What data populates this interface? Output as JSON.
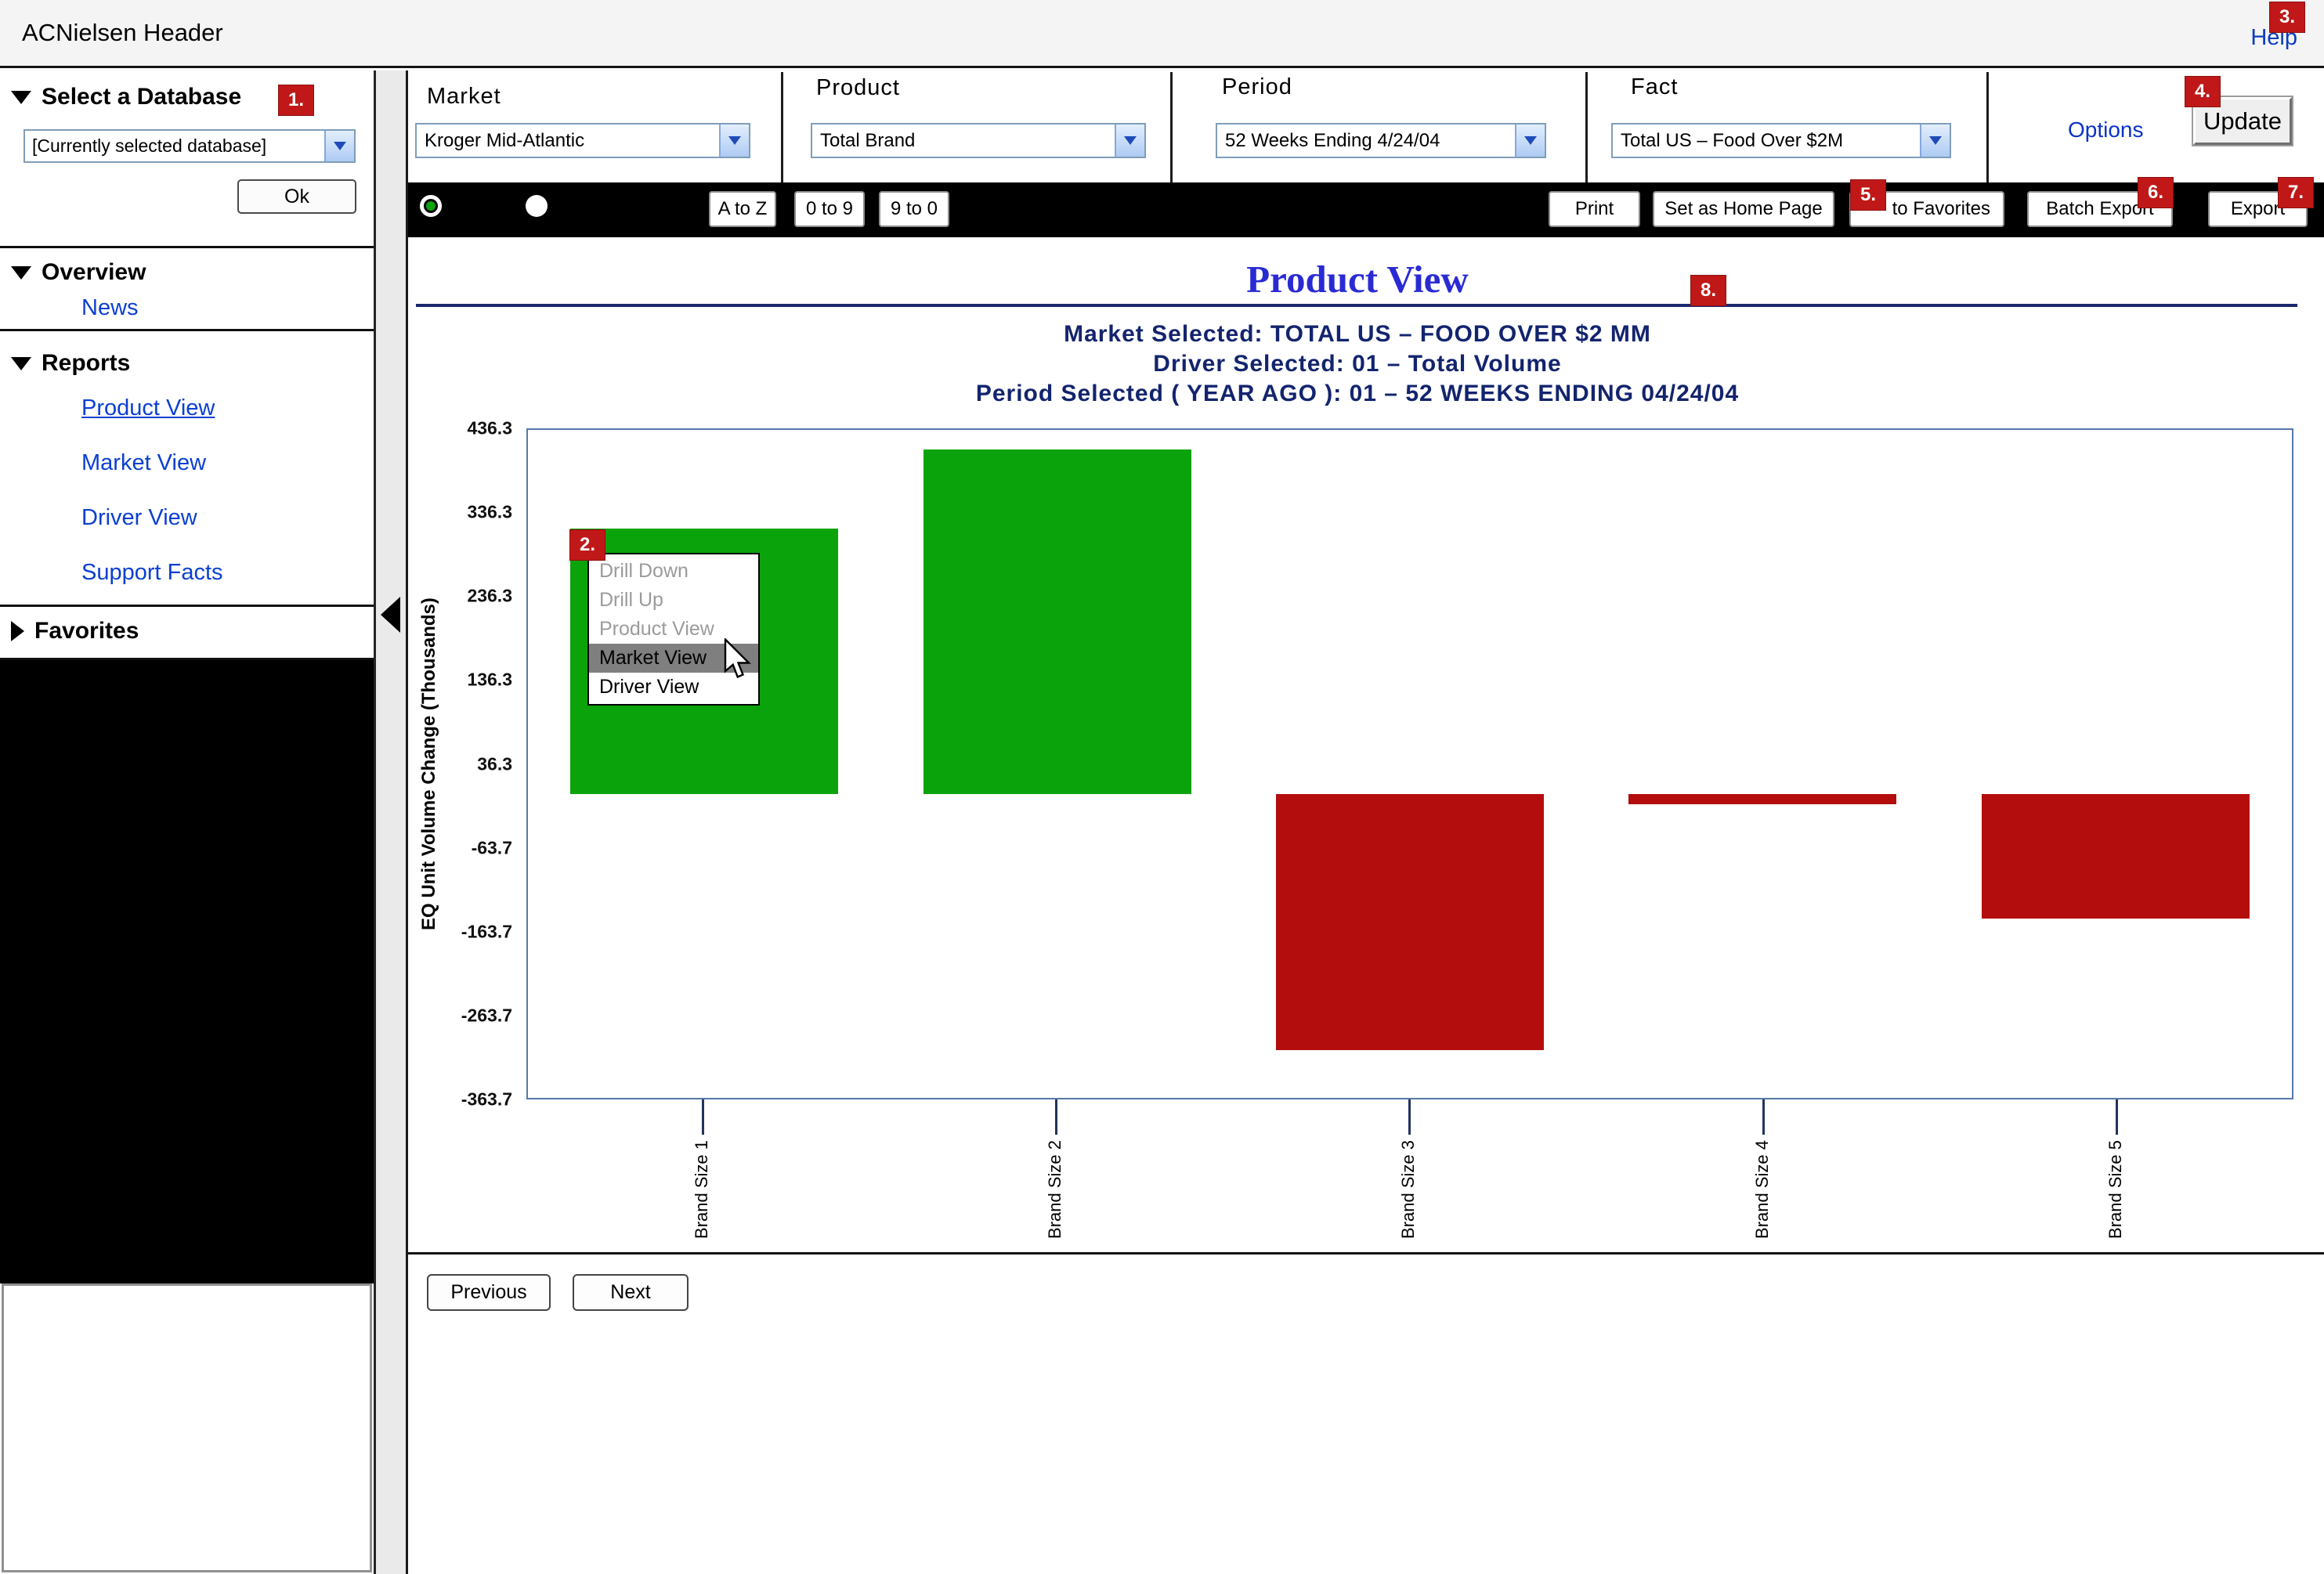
{
  "header": {
    "app_title": "ACNielsen Header",
    "help_label": "Help"
  },
  "badges": {
    "b1": "1.",
    "b2": "2.",
    "b3": "3.",
    "b4": "4.",
    "b5": "5.",
    "b6": "6.",
    "b7": "7.",
    "b8": "8."
  },
  "sidebar": {
    "select_database": {
      "label": "Select a Database",
      "value": "[Currently selected database]",
      "ok_label": "Ok"
    },
    "overview": {
      "label": "Overview",
      "news_label": "News"
    },
    "reports": {
      "label": "Reports",
      "items": [
        {
          "label": "Product View",
          "active": true
        },
        {
          "label": "Market View",
          "active": false
        },
        {
          "label": "Driver View",
          "active": false
        },
        {
          "label": "Support Facts",
          "active": false
        }
      ]
    },
    "favorites_label": "Favorites"
  },
  "filters": {
    "market": {
      "label": "Market",
      "value": "Kroger Mid-Atlantic"
    },
    "product": {
      "label": "Product",
      "value": "Total Brand"
    },
    "period": {
      "label": "Period",
      "value": "52 Weeks Ending 4/24/04"
    },
    "fact": {
      "label": "Fact",
      "value": "Total US – Food Over $2M"
    },
    "options_label": "Options",
    "update_label": "Update"
  },
  "toolbar": {
    "sort_buttons": [
      "A to Z",
      "0 to 9",
      "9 to 0"
    ],
    "actions": [
      "Print",
      "Set as Home Page",
      "to Favorites",
      "Batch Export",
      "Export"
    ]
  },
  "report": {
    "title": "Product View",
    "subtitle_lines": [
      "Market Selected: TOTAL US – FOOD OVER $2 MM",
      "Driver Selected: 01 – Total Volume",
      "Period Selected ( YEAR AGO ): 01 – 52 WEEKS ENDING 04/24/04"
    ]
  },
  "context_menu": {
    "items": [
      {
        "label": "Drill Down",
        "state": "disabled"
      },
      {
        "label": "Drill Up",
        "state": "disabled"
      },
      {
        "label": "Product View",
        "state": "disabled"
      },
      {
        "label": "Market View",
        "state": "highlighted"
      },
      {
        "label": "Driver View",
        "state": "normal"
      }
    ]
  },
  "chart_data": {
    "type": "bar",
    "title": "Product View",
    "categories": [
      "Brand Size 1",
      "Brand Size 2",
      "Brand Size 3",
      "Brand Size 4",
      "Brand Size 5"
    ],
    "values": [
      318,
      413,
      -307,
      -12,
      -149
    ],
    "ylabel": "EQ Unit Volume Change (Thousands)",
    "xlabel": "",
    "yticks": [
      436.3,
      336.3,
      236.3,
      136.3,
      36.3,
      -63.7,
      -163.7,
      -263.7,
      -363.7
    ],
    "ylim": [
      -363.7,
      436.3
    ],
    "grid": false,
    "legend": "none",
    "positive_color": "#0ba30b",
    "negative_color": "#b30d0d"
  },
  "pagination": {
    "previous_label": "Previous",
    "next_label": "Next"
  }
}
